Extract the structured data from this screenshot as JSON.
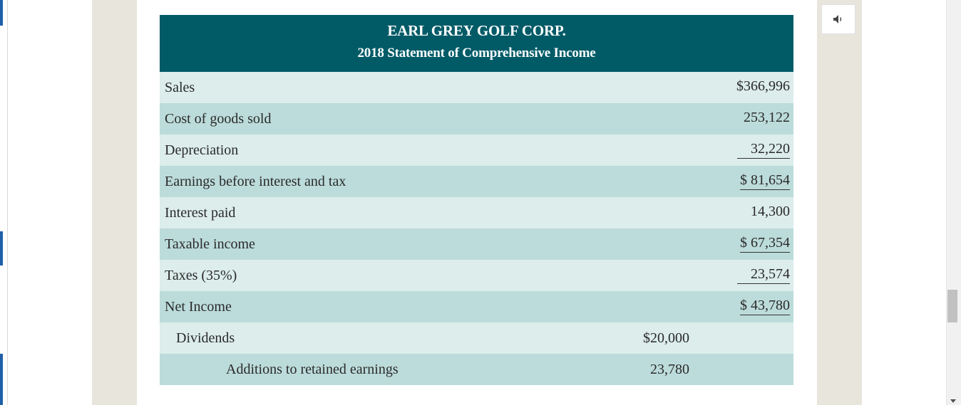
{
  "statement": {
    "company": "EARL GREY GOLF CORP.",
    "subtitle": "2018 Statement of Comprehensive Income",
    "rows": [
      {
        "label": "Sales",
        "amount": "$366,996"
      },
      {
        "label": "Cost of goods sold",
        "amount": "253,122"
      },
      {
        "label": "Depreciation",
        "amount": "32,220"
      },
      {
        "label": "Earnings before interest and tax",
        "amount": "$ 81,654"
      },
      {
        "label": "Interest paid",
        "amount": "14,300"
      },
      {
        "label": "Taxable income",
        "amount": "$ 67,354"
      },
      {
        "label": "Taxes (35%)",
        "amount": "23,574"
      },
      {
        "label": "Net Income",
        "amount": "$ 43,780"
      },
      {
        "label": "Dividends",
        "amount": "$20,000"
      },
      {
        "label": "Additions to retained earnings",
        "amount": "23,780"
      }
    ]
  },
  "audio_button": {
    "icon": "speaker-icon"
  },
  "colors": {
    "header_bg": "#005b67",
    "row_light": "#dcedeb",
    "row_dark": "#bcdcdb",
    "side_band": "#e8e5dc"
  }
}
